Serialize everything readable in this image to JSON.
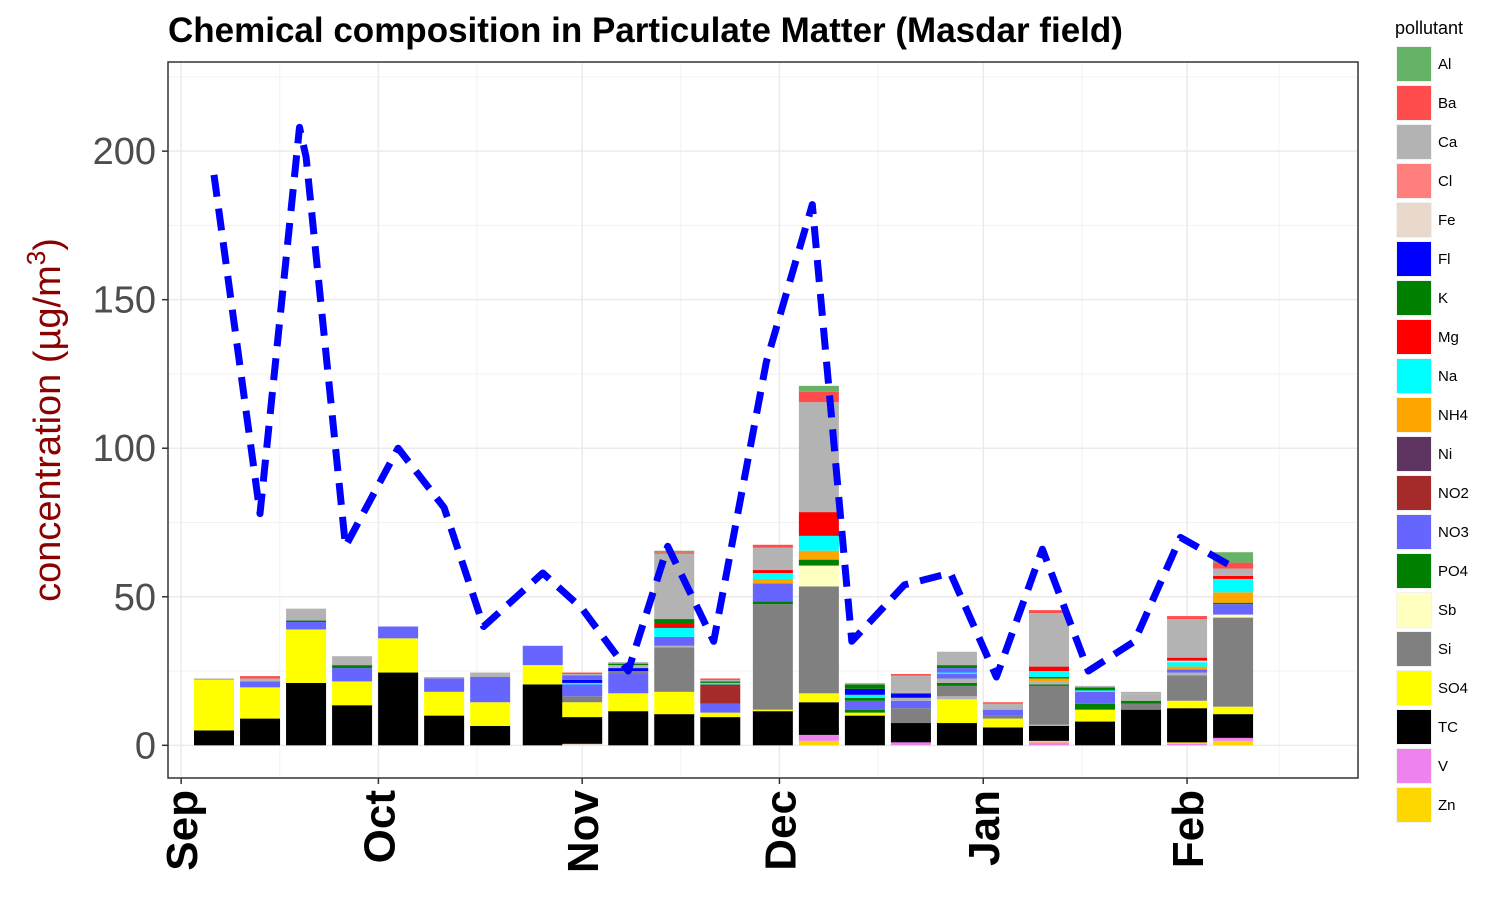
{
  "chart_data": {
    "type": "bar",
    "title": "Chemical composition in Particulate Matter (Masdar field)",
    "ylabel": "concentration (µg/m",
    "ylabel_sup": "3",
    "ylabel_close": ")",
    "xlabel": "",
    "ylim": [
      -11,
      230
    ],
    "yticks": [
      0,
      50,
      100,
      150,
      200
    ],
    "xlim": [
      "2010-08-30",
      "2011-02-27"
    ],
    "xticks": [
      {
        "label": "Sep",
        "date": "2010-09-01"
      },
      {
        "label": "Oct",
        "date": "2010-10-01"
      },
      {
        "label": "Nov",
        "date": "2010-11-01"
      },
      {
        "label": "Dec",
        "date": "2010-12-01"
      },
      {
        "label": "Jan",
        "date": "2011-01-01"
      },
      {
        "label": "Feb",
        "date": "2011-02-01"
      }
    ],
    "grid": true,
    "legend_position": "right",
    "legend_title": "pollutant",
    "pollutants": [
      {
        "name": "Al",
        "color": "#66b266"
      },
      {
        "name": "Ba",
        "color": "#ff4c4c"
      },
      {
        "name": "Ca",
        "color": "#b3b3b3"
      },
      {
        "name": "Cl",
        "color": "#ff7f7f"
      },
      {
        "name": "Fe",
        "color": "#e8d9cc"
      },
      {
        "name": "Fl",
        "color": "#0000ff"
      },
      {
        "name": "K",
        "color": "#008000"
      },
      {
        "name": "Mg",
        "color": "#ff0000"
      },
      {
        "name": "Na",
        "color": "#00ffff"
      },
      {
        "name": "NH4",
        "color": "#ffa500"
      },
      {
        "name": "Ni",
        "color": "#5e3460"
      },
      {
        "name": "NO2",
        "color": "#a52a2a"
      },
      {
        "name": "NO3",
        "color": "#6666ff"
      },
      {
        "name": "PO4",
        "color": "#008000"
      },
      {
        "name": "Sb",
        "color": "#ffffc0"
      },
      {
        "name": "Si",
        "color": "#808080"
      },
      {
        "name": "SO4",
        "color": "#ffff00"
      },
      {
        "name": "TC",
        "color": "#000000"
      },
      {
        "name": "V",
        "color": "#ee82ee"
      },
      {
        "name": "Zn",
        "color": "#ffd700"
      }
    ],
    "bars": [
      {
        "date": "2010-09-06",
        "stack": [
          [
            "TC",
            5
          ],
          [
            "SO4",
            17
          ],
          [
            "Ca",
            0.5
          ]
        ]
      },
      {
        "date": "2010-09-13",
        "stack": [
          [
            "TC",
            9
          ],
          [
            "SO4",
            10.5
          ],
          [
            "NO3",
            2
          ],
          [
            "Ca",
            1
          ],
          [
            "Ba",
            0.8
          ]
        ]
      },
      {
        "date": "2010-09-20",
        "stack": [
          [
            "TC",
            21
          ],
          [
            "SO4",
            18
          ],
          [
            "NO3",
            2.5
          ],
          [
            "PO4",
            0.5
          ],
          [
            "Ca",
            4
          ]
        ]
      },
      {
        "date": "2010-09-27",
        "stack": [
          [
            "TC",
            13.5
          ],
          [
            "SO4",
            8
          ],
          [
            "NO3",
            4.5
          ],
          [
            "PO4",
            1
          ],
          [
            "Ca",
            3
          ]
        ]
      },
      {
        "date": "2010-10-04",
        "stack": [
          [
            "TC",
            24.5
          ],
          [
            "SO4",
            11.5
          ],
          [
            "NO3",
            4
          ]
        ]
      },
      {
        "date": "2010-10-11",
        "stack": [
          [
            "TC",
            10
          ],
          [
            "SO4",
            8
          ],
          [
            "NO3",
            4.5
          ],
          [
            "Ca",
            0.5
          ]
        ]
      },
      {
        "date": "2010-10-18",
        "stack": [
          [
            "TC",
            6.5
          ],
          [
            "SO4",
            8
          ],
          [
            "NO3",
            8.5
          ],
          [
            "Ca",
            1.5
          ]
        ]
      },
      {
        "date": "2010-10-26",
        "stack": [
          [
            "TC",
            20.5
          ],
          [
            "SO4",
            6.5
          ],
          [
            "NO3",
            6.5
          ]
        ]
      },
      {
        "date": "2010-11-01",
        "stack": [
          [
            "Fe",
            0.5
          ],
          [
            "TC",
            9
          ],
          [
            "SO4",
            5
          ],
          [
            "Si",
            2
          ],
          [
            "NO3",
            4
          ],
          [
            "Na",
            0.5
          ],
          [
            "Fl",
            1
          ],
          [
            "NO3",
            1.5
          ],
          [
            "Ca",
            0.5
          ],
          [
            "Ba",
            0.5
          ]
        ]
      },
      {
        "date": "2010-11-08",
        "stack": [
          [
            "TC",
            11.5
          ],
          [
            "SO4",
            6
          ],
          [
            "NO3",
            6.5
          ],
          [
            "Si",
            1
          ],
          [
            "Fl",
            1
          ],
          [
            "Ca",
            1
          ],
          [
            "PO4",
            0.5
          ],
          [
            "Ca",
            0.5
          ]
        ]
      },
      {
        "date": "2010-11-15",
        "stack": [
          [
            "TC",
            10.5
          ],
          [
            "SO4",
            7.5
          ],
          [
            "Si",
            15
          ],
          [
            "Ca",
            0.5
          ],
          [
            "NO3",
            3
          ],
          [
            "Na",
            3
          ],
          [
            "Mg",
            1.5
          ],
          [
            "PO4",
            1.5
          ],
          [
            "Ca",
            22
          ],
          [
            "Ba",
            0.5
          ],
          [
            "Al",
            0.5
          ]
        ]
      },
      {
        "date": "2010-11-22",
        "stack": [
          [
            "TC",
            9.5
          ],
          [
            "SO4",
            1.5
          ],
          [
            "NO3",
            3
          ],
          [
            "NO2",
            6.5
          ],
          [
            "Na",
            0.5
          ],
          [
            "PO4",
            0.5
          ],
          [
            "Ca",
            0.5
          ],
          [
            "Ba",
            0.5
          ]
        ]
      },
      {
        "date": "2010-11-30",
        "stack": [
          [
            "TC",
            11.5
          ],
          [
            "SO4",
            0.5
          ],
          [
            "Si",
            35.5
          ],
          [
            "PO4",
            1
          ],
          [
            "NO3",
            6
          ],
          [
            "NH4",
            1.5
          ],
          [
            "Na",
            2
          ],
          [
            "Mg",
            1
          ],
          [
            "Ca",
            7.5
          ],
          [
            "Ba",
            1
          ]
        ]
      },
      {
        "date": "2010-12-07",
        "stack": [
          [
            "Zn",
            1.5
          ],
          [
            "V",
            2
          ],
          [
            "TC",
            11
          ],
          [
            "SO4",
            3
          ],
          [
            "Si",
            36
          ],
          [
            "Sb",
            7
          ],
          [
            "PO4",
            2
          ],
          [
            "NH4",
            3
          ],
          [
            "Na",
            5
          ],
          [
            "Mg",
            8
          ],
          [
            "Ca",
            37
          ],
          [
            "Ba",
            3.5
          ],
          [
            "Al",
            2
          ]
        ]
      },
      {
        "date": "2010-12-14",
        "stack": [
          [
            "TC",
            10
          ],
          [
            "SO4",
            1
          ],
          [
            "PO4",
            1
          ],
          [
            "NO3",
            3
          ],
          [
            "K",
            1
          ],
          [
            "Na",
            1
          ],
          [
            "Fl",
            2
          ],
          [
            "PO4",
            1.5
          ],
          [
            "Ca",
            0.5
          ]
        ]
      },
      {
        "date": "2010-12-21",
        "stack": [
          [
            "V",
            1
          ],
          [
            "TC",
            6.5
          ],
          [
            "Si",
            5
          ],
          [
            "NO3",
            2.5
          ],
          [
            "Ca",
            1
          ],
          [
            "Fl",
            1.5
          ],
          [
            "Ca",
            0.5
          ],
          [
            "Ca",
            5.5
          ],
          [
            "Ba",
            0.5
          ]
        ]
      },
      {
        "date": "2010-12-28",
        "stack": [
          [
            "TC",
            7.5
          ],
          [
            "SO4",
            8
          ],
          [
            "Ca",
            1
          ],
          [
            "Si",
            3.5
          ],
          [
            "PO4",
            1
          ],
          [
            "Ca",
            1.5
          ],
          [
            "NO3",
            1.5
          ],
          [
            "Na",
            0.5
          ],
          [
            "NO3",
            1.5
          ],
          [
            "PO4",
            1
          ],
          [
            "Ca",
            4.5
          ]
        ]
      },
      {
        "date": "2011-01-04",
        "stack": [
          [
            "TC",
            6
          ],
          [
            "SO4",
            3
          ],
          [
            "Si",
            1
          ],
          [
            "NO3",
            2
          ],
          [
            "Ca",
            2
          ],
          [
            "Ba",
            0.5
          ]
        ]
      },
      {
        "date": "2011-01-11",
        "stack": [
          [
            "V",
            1
          ],
          [
            "Zn",
            0.5
          ],
          [
            "TC",
            5
          ],
          [
            "Ca",
            0.5
          ],
          [
            "Si",
            13
          ],
          [
            "PO4",
            0.5
          ],
          [
            "Ca",
            1
          ],
          [
            "NH4",
            1
          ],
          [
            "PO4",
            0.5
          ],
          [
            "Na",
            2
          ],
          [
            "Mg",
            1.5
          ],
          [
            "Ca",
            18
          ],
          [
            "Ba",
            1
          ]
        ]
      },
      {
        "date": "2011-01-18",
        "stack": [
          [
            "TC",
            8
          ],
          [
            "SO4",
            4
          ],
          [
            "PO4",
            2
          ],
          [
            "NO3",
            4
          ],
          [
            "Na",
            0.5
          ],
          [
            "PO4",
            1
          ],
          [
            "Ca",
            0.5
          ]
        ]
      },
      {
        "date": "2011-01-25",
        "stack": [
          [
            "TC",
            12
          ],
          [
            "Si",
            2
          ],
          [
            "PO4",
            1
          ],
          [
            "Ca",
            2
          ],
          [
            "Ca",
            1
          ]
        ]
      },
      {
        "date": "2011-02-01",
        "stack": [
          [
            "V",
            0.5
          ],
          [
            "Zn",
            0.5
          ],
          [
            "TC",
            11.5
          ],
          [
            "SO4",
            2.5
          ],
          [
            "Si",
            8.5
          ],
          [
            "Ca",
            1
          ],
          [
            "NO3",
            1
          ],
          [
            "NH4",
            1
          ],
          [
            "Na",
            1.5
          ],
          [
            "Fe",
            0.5
          ],
          [
            "Mg",
            1
          ],
          [
            "Ca",
            13
          ],
          [
            "Ba",
            1
          ]
        ]
      },
      {
        "date": "2011-02-08",
        "stack": [
          [
            "Zn",
            1.5
          ],
          [
            "V",
            1
          ],
          [
            "TC",
            8
          ],
          [
            "SO4",
            2.5
          ],
          [
            "Si",
            30
          ],
          [
            "Sb",
            1
          ],
          [
            "NO3",
            3.5
          ],
          [
            "PO4",
            0.5
          ],
          [
            "NH4",
            3.5
          ],
          [
            "Na",
            4.5
          ],
          [
            "Mg",
            1
          ],
          [
            "Ca",
            2.5
          ],
          [
            "Ba",
            2
          ],
          [
            "Al",
            3.5
          ]
        ]
      }
    ],
    "line": {
      "color": "#0000ff",
      "points": [
        {
          "x": "2010-09-06",
          "y": 192
        },
        {
          "x": "2010-09-13",
          "y": 78
        },
        {
          "x": "2010-09-19",
          "y": 208
        },
        {
          "x": "2010-09-20",
          "y": 198
        },
        {
          "x": "2010-09-26",
          "y": 67
        },
        {
          "x": "2010-10-04",
          "y": 100
        },
        {
          "x": "2010-10-11",
          "y": 80
        },
        {
          "x": "2010-10-17",
          "y": 40
        },
        {
          "x": "2010-10-26",
          "y": 58
        },
        {
          "x": "2010-11-01",
          "y": 46
        },
        {
          "x": "2010-11-08",
          "y": 25
        },
        {
          "x": "2010-11-14",
          "y": 67
        },
        {
          "x": "2010-11-21",
          "y": 35
        },
        {
          "x": "2010-11-29",
          "y": 129
        },
        {
          "x": "2010-12-06",
          "y": 182
        },
        {
          "x": "2010-12-12",
          "y": 35
        },
        {
          "x": "2010-12-20",
          "y": 54
        },
        {
          "x": "2010-12-27",
          "y": 58
        },
        {
          "x": "2011-01-03",
          "y": 23
        },
        {
          "x": "2011-01-10",
          "y": 66
        },
        {
          "x": "2011-01-17",
          "y": 25
        },
        {
          "x": "2011-01-24",
          "y": 35
        },
        {
          "x": "2011-01-31",
          "y": 70
        },
        {
          "x": "2011-02-08",
          "y": 60
        }
      ]
    }
  }
}
